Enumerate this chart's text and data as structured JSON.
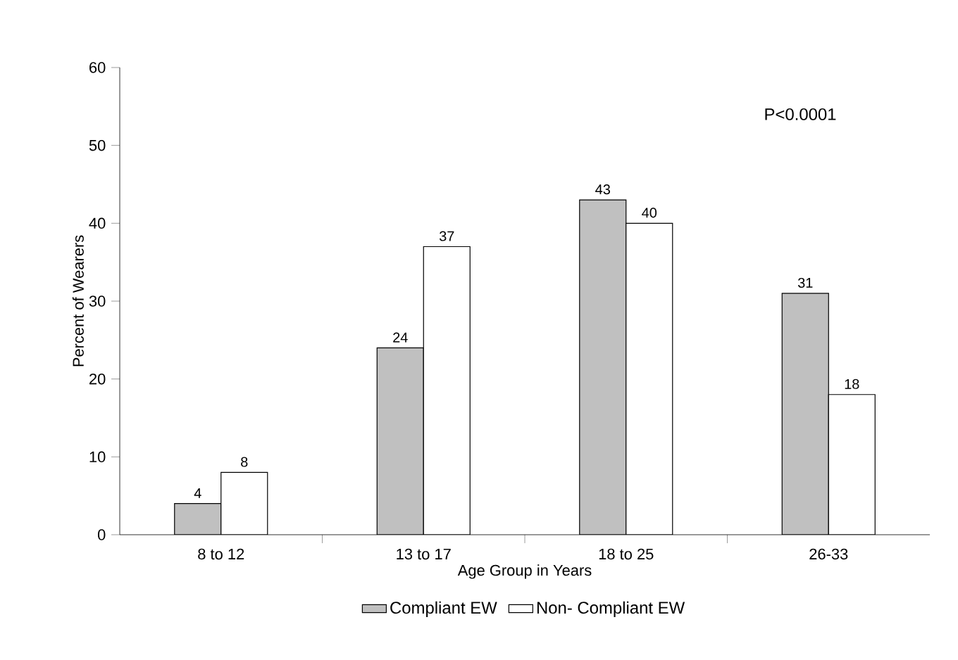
{
  "chart_data": {
    "type": "bar",
    "xlabel": "Age Group in Years",
    "ylabel": "Percent of Wearers",
    "categories": [
      "8 to 12",
      "13 to 17",
      "18 to 25",
      "26-33"
    ],
    "series": [
      {
        "name": "Compliant EW",
        "color": "#c0c0c0",
        "values": [
          4,
          24,
          43,
          31
        ]
      },
      {
        "name": "Non- Compliant EW",
        "color": "#ffffff",
        "values": [
          8,
          37,
          40,
          18
        ]
      }
    ],
    "ylim": [
      0,
      60
    ],
    "yticks": [
      0,
      10,
      20,
      30,
      40,
      50,
      60
    ],
    "data_labels": true,
    "legend": "bottom",
    "grid": false,
    "annotations": [
      "P<0.0001"
    ]
  }
}
